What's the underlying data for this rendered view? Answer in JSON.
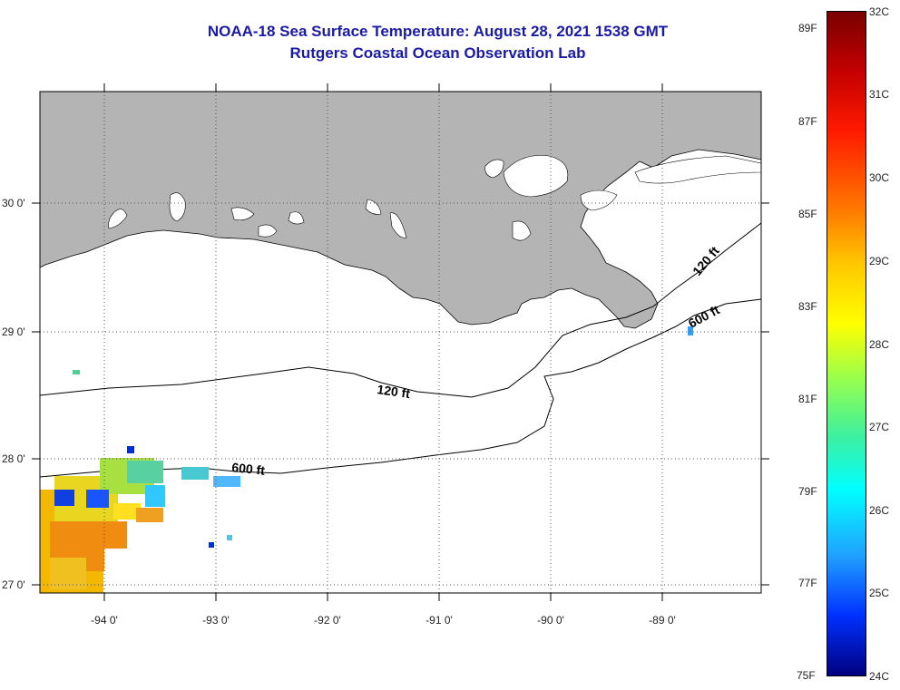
{
  "title": {
    "line1": "NOAA-18 Sea Surface Temperature:  August 28, 2021 1538 GMT",
    "line2": "Rutgers Coastal Ocean Observation Lab"
  },
  "map": {
    "lat_range": [
      27.0,
      30.8
    ],
    "lon_range": [
      -94.55,
      -88.05
    ],
    "lat_labels": [
      "27 0'",
      "28 0'",
      "29 0'",
      "30 0'"
    ],
    "lon_labels": [
      "-94 0'",
      "-93 0'",
      "-92 0'",
      "-91 0'",
      "-90 0'",
      "-89 0'"
    ],
    "land_color": "#b4b4b4",
    "ocean_color": "#ffffff",
    "gridline_style": "dotted",
    "contour_labels": [
      "120 ft",
      "600 ft",
      "120 ft",
      "600 ft"
    ]
  },
  "colorbar": {
    "celsius_labels": [
      "32C",
      "31C",
      "30C",
      "29C",
      "28C",
      "27C",
      "26C",
      "25C",
      "24C"
    ],
    "fahrenheit_labels": [
      "89F",
      "87F",
      "85F",
      "83F",
      "81F",
      "79F",
      "77F",
      "75F"
    ],
    "range_c": [
      24,
      32
    ],
    "top_color": "#7a0000",
    "bottom_color": "#000080"
  },
  "icons": [
    "colorbar-scale",
    "sst-data-patch"
  ]
}
